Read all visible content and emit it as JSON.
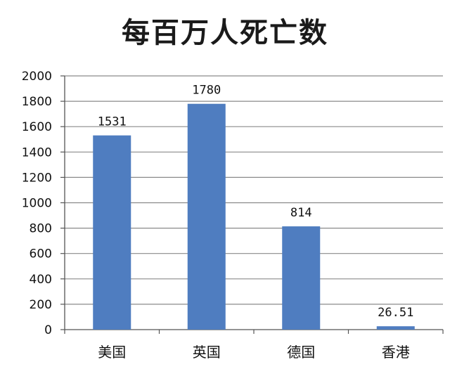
{
  "chart_data": {
    "type": "bar",
    "title": "每百万人死亡数",
    "categories": [
      "美国",
      "英国",
      "德国",
      "香港"
    ],
    "values": [
      1531,
      1780,
      814,
      26.51
    ],
    "data_labels": [
      "1531",
      "1780",
      "814",
      "26.51"
    ],
    "ylim": [
      0,
      2000
    ],
    "yticks": [
      0,
      200,
      400,
      600,
      800,
      1000,
      1200,
      1400,
      1600,
      1800,
      2000
    ],
    "xlabel": "",
    "ylabel": "",
    "grid": true,
    "legend": "none",
    "bar_color": "#4f7dc0",
    "grid_color": "#8a8a8a"
  }
}
